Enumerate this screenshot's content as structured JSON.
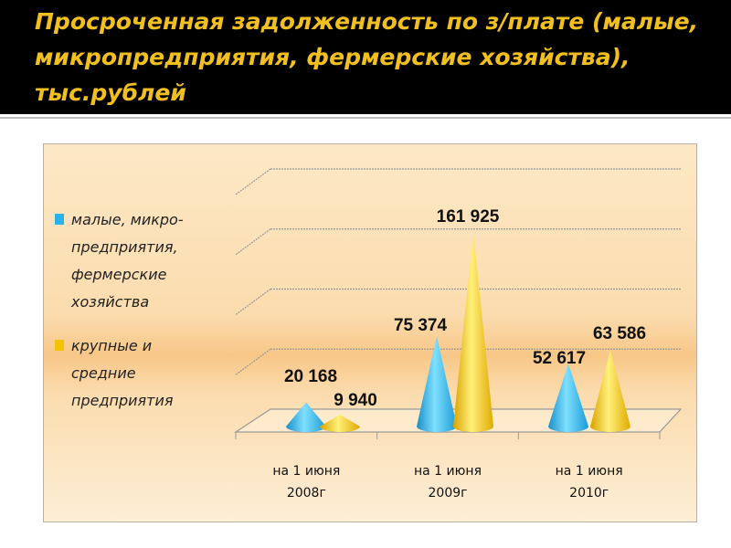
{
  "title": "Просроченная задолженность по з/плате (малые, микропредприятия, фермерские хозяйства), тыс.рублей",
  "chart_data": {
    "type": "bar",
    "subtype": "3d-cone",
    "title": "Просроченная задолженность по з/плате (малые, микропредприятия, фермерские хозяйства), тыс.рублей",
    "categories": [
      "на 1 июня 2008г",
      "на 1 июня 2009г",
      "на 1 июня 2010г"
    ],
    "category_lines": [
      [
        "на 1 июня",
        "2008г"
      ],
      [
        "на 1 июня",
        "2009г"
      ],
      [
        "на 1 июня",
        "2010г"
      ]
    ],
    "series": [
      {
        "name": "малые, микро-предприятия, фермерские хозяйства",
        "color": "#29b3e6",
        "values": [
          20168,
          75374,
          52617
        ],
        "labels": [
          "20 168",
          "75 374",
          "52 617"
        ]
      },
      {
        "name": "крупные и средние предприятия",
        "color": "#f3c200",
        "values": [
          9940,
          161925,
          63586
        ],
        "labels": [
          "9 940",
          "161 925",
          "63 586"
        ]
      }
    ],
    "ylim": [
      0,
      200000
    ],
    "ytick_step": 50000,
    "grid": true,
    "legend": "left",
    "xlabel": "",
    "ylabel": ""
  },
  "legend": {
    "items": [
      {
        "lines": [
          "малые, микро-",
          "предприятия,",
          "фермерские",
          "хозяйства"
        ]
      },
      {
        "lines": [
          "крупные и",
          "средние",
          "предприятия"
        ]
      }
    ]
  }
}
